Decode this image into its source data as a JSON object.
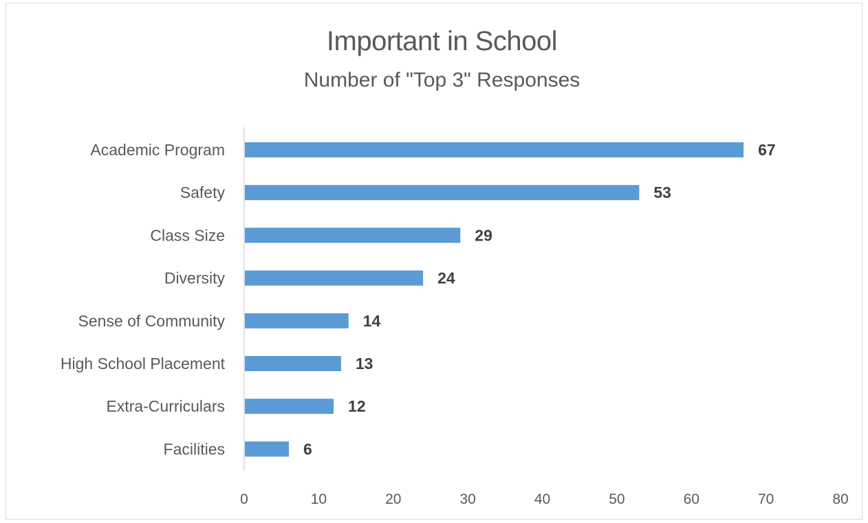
{
  "chart_data": {
    "type": "bar",
    "orientation": "horizontal",
    "title": "Important in School",
    "subtitle": "Number of \"Top 3\" Responses",
    "categories": [
      "Academic Program",
      "Safety",
      "Class Size",
      "Diversity",
      "Sense of Community",
      "High School Placement",
      "Extra-Curriculars",
      "Facilities"
    ],
    "values": [
      67,
      53,
      29,
      24,
      14,
      13,
      12,
      6
    ],
    "xlim": [
      0,
      80
    ],
    "xticks": [
      0,
      10,
      20,
      30,
      40,
      50,
      60,
      70,
      80
    ],
    "xlabel": "",
    "ylabel": "",
    "grid": false,
    "legend": "none",
    "data_labels": true,
    "bar_color": "#5B9BD5"
  }
}
